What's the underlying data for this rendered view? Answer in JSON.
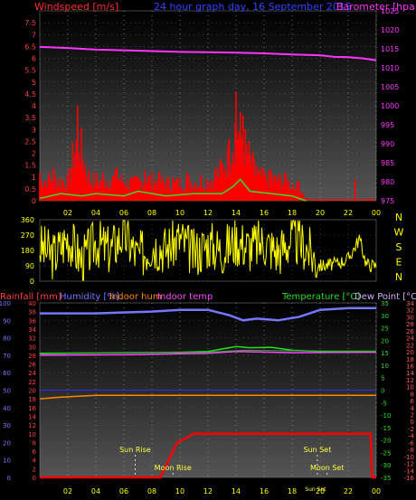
{
  "header": {
    "left_label": "Windspeed [m/s]",
    "center_label": "24 hour graph day, 16 September 2015",
    "right_label": "Barometer [hpa]"
  },
  "colors": {
    "wind": "#ff2020",
    "gust_fill": "#ff0000",
    "wind_avg": "#33dd33",
    "barometer": "#ff33ff",
    "title": "#3344ff",
    "direction": "#ffff00",
    "rain_axis": "#ff4040",
    "humidity": "#7777ff",
    "indoor_hum": "#ff8800",
    "indoor_temp": "#ff44ff",
    "temperature": "#22dd22",
    "dew_point": "#d0b0ff",
    "outer_scale": "#ff5555",
    "sun": "#ffff44",
    "axis_text": "#ffff00",
    "background_top": "#000000",
    "background_bottom": "#555555"
  },
  "chart_data": [
    {
      "type": "bar",
      "name": "windspeed",
      "x_ticks": [
        "02",
        "04",
        "06",
        "08",
        "10",
        "12",
        "14",
        "16",
        "18",
        "20",
        "22",
        "00"
      ],
      "x_range_hours": [
        0,
        24
      ],
      "y_left": {
        "label": "Windspeed [m/s]",
        "range": [
          0,
          8
        ],
        "ticks": [
          "0",
          "0.5",
          "1",
          "1.5",
          "2",
          "2.5",
          "3",
          "3.5",
          "4",
          "4.5",
          "5",
          "5.5",
          "6",
          "6.5",
          "7",
          "7.5"
        ]
      },
      "y_right": {
        "label": "Barometer [hpa]",
        "range": [
          975,
          1025
        ],
        "ticks": [
          "975",
          "980",
          "985",
          "990",
          "995",
          "1000",
          "1005",
          "1010",
          "1015",
          "1020",
          "1025"
        ]
      },
      "gust_segments": [
        {
          "hour": 0.0,
          "value": 1.2
        },
        {
          "hour": 1.0,
          "value": 1.4
        },
        {
          "hour": 2.0,
          "value": 1.1
        },
        {
          "hour": 2.7,
          "value": 4.0
        },
        {
          "hour": 3.5,
          "value": 1.3
        },
        {
          "hour": 4.5,
          "value": 1.2
        },
        {
          "hour": 5.5,
          "value": 1.4
        },
        {
          "hour": 6.5,
          "value": 1.0
        },
        {
          "hour": 7.5,
          "value": 1.3
        },
        {
          "hour": 8.5,
          "value": 1.2
        },
        {
          "hour": 9.5,
          "value": 1.0
        },
        {
          "hour": 10.5,
          "value": 1.2
        },
        {
          "hour": 11.5,
          "value": 1.1
        },
        {
          "hour": 12.5,
          "value": 1.4
        },
        {
          "hour": 13.5,
          "value": 2.6
        },
        {
          "hour": 14.0,
          "value": 4.6
        },
        {
          "hour": 14.5,
          "value": 3.6
        },
        {
          "hour": 15.5,
          "value": 1.5
        },
        {
          "hour": 16.5,
          "value": 1.3
        },
        {
          "hour": 17.5,
          "value": 1.2
        },
        {
          "hour": 18.5,
          "value": 0.8
        },
        {
          "hour": 19.0,
          "value": 0.1
        },
        {
          "hour": 22.5,
          "value": 0.9
        },
        {
          "hour": 23.5,
          "value": 0.1
        }
      ],
      "avg_wind": [
        {
          "hour": 0.0,
          "value": 0.1
        },
        {
          "hour": 1.5,
          "value": 0.3
        },
        {
          "hour": 3.0,
          "value": 0.2
        },
        {
          "hour": 4.0,
          "value": 0.3
        },
        {
          "hour": 6.0,
          "value": 0.2
        },
        {
          "hour": 7.0,
          "value": 0.4
        },
        {
          "hour": 9.0,
          "value": 0.2
        },
        {
          "hour": 11.0,
          "value": 0.3
        },
        {
          "hour": 13.0,
          "value": 0.3
        },
        {
          "hour": 13.8,
          "value": 0.6
        },
        {
          "hour": 14.3,
          "value": 0.9
        },
        {
          "hour": 15.0,
          "value": 0.4
        },
        {
          "hour": 16.5,
          "value": 0.3
        },
        {
          "hour": 18.0,
          "value": 0.2
        },
        {
          "hour": 19.0,
          "value": 0.0
        }
      ],
      "barometer": [
        {
          "hour": 0.0,
          "value": 1015.5
        },
        {
          "hour": 2.0,
          "value": 1015.2
        },
        {
          "hour": 4.0,
          "value": 1014.8
        },
        {
          "hour": 6.0,
          "value": 1014.6
        },
        {
          "hour": 8.0,
          "value": 1014.4
        },
        {
          "hour": 10.0,
          "value": 1014.2
        },
        {
          "hour": 12.0,
          "value": 1014.1
        },
        {
          "hour": 14.0,
          "value": 1014.0
        },
        {
          "hour": 16.0,
          "value": 1013.8
        },
        {
          "hour": 18.0,
          "value": 1013.5
        },
        {
          "hour": 20.0,
          "value": 1013.3
        },
        {
          "hour": 21.0,
          "value": 1012.9
        },
        {
          "hour": 22.0,
          "value": 1012.8
        },
        {
          "hour": 23.0,
          "value": 1012.5
        },
        {
          "hour": 24.0,
          "value": 1012.0
        }
      ]
    },
    {
      "type": "line",
      "name": "wind-direction",
      "y_left": {
        "range": [
          0,
          360
        ],
        "ticks": [
          "0",
          "90",
          "180",
          "270",
          "360"
        ]
      },
      "compass": [
        "N",
        "W",
        "S",
        "E",
        "N"
      ],
      "x_range_hours": [
        0,
        24
      ],
      "series": [
        {
          "hour": 0.0,
          "value": 200
        },
        {
          "hour": 1.0,
          "value": 150
        },
        {
          "hour": 2.0,
          "value": 260
        },
        {
          "hour": 3.0,
          "value": 120
        },
        {
          "hour": 4.0,
          "value": 230
        },
        {
          "hour": 5.0,
          "value": 180
        },
        {
          "hour": 6.0,
          "value": 280
        },
        {
          "hour": 7.0,
          "value": 140
        },
        {
          "hour": 8.0,
          "value": 220
        },
        {
          "hour": 9.0,
          "value": 190
        },
        {
          "hour": 10.0,
          "value": 250
        },
        {
          "hour": 11.0,
          "value": 160
        },
        {
          "hour": 12.0,
          "value": 220
        },
        {
          "hour": 13.0,
          "value": 180
        },
        {
          "hour": 14.0,
          "value": 240
        },
        {
          "hour": 15.0,
          "value": 200
        },
        {
          "hour": 16.0,
          "value": 230
        },
        {
          "hour": 17.0,
          "value": 170
        },
        {
          "hour": 18.0,
          "value": 250
        },
        {
          "hour": 19.0,
          "value": 200
        },
        {
          "hour": 20.0,
          "value": 90
        },
        {
          "hour": 21.0,
          "value": 100
        },
        {
          "hour": 22.0,
          "value": 130
        },
        {
          "hour": 22.8,
          "value": 250
        },
        {
          "hour": 23.3,
          "value": 100
        },
        {
          "hour": 24.0,
          "value": 90
        }
      ]
    },
    {
      "type": "line",
      "name": "temperature-humidity",
      "header_labels": {
        "rainfall": "Rainfall [mm]",
        "humidity": "Humidity [%]",
        "indoor_hum": "Indoor hum",
        "indoor_temp": "Indoor temp",
        "temperature": "Temperature [°C]",
        "dew_point": "Dew Point [°C]"
      },
      "x_ticks": [
        "02",
        "04",
        "06",
        "08",
        "10",
        "12",
        "14",
        "16",
        "18",
        "20",
        "22",
        "00"
      ],
      "x_range_hours": [
        0,
        24
      ],
      "humidity_axis": {
        "range": [
          0,
          100
        ],
        "ticks": [
          "0",
          "10",
          "20",
          "30",
          "40",
          "50",
          "60",
          "70",
          "80",
          "90",
          "100"
        ]
      },
      "rainfall_axis": {
        "range": [
          0,
          40
        ],
        "ticks": [
          "0",
          "2",
          "4",
          "6",
          "8",
          "10",
          "12",
          "14",
          "16",
          "18",
          "20",
          "22",
          "24",
          "26",
          "28",
          "30",
          "32",
          "34",
          "36",
          "38",
          "40"
        ]
      },
      "temperature_axis": {
        "range": [
          -35,
          35
        ],
        "ticks": [
          "35",
          "30",
          "25",
          "20",
          "15",
          "10",
          "5",
          "0",
          "-5",
          "-10",
          "-15",
          "-20",
          "-25",
          "-30",
          "-35"
        ]
      },
      "dewpoint_axis": {
        "range": [
          -16,
          34
        ],
        "ticks": [
          "34",
          "32",
          "30",
          "28",
          "26",
          "24",
          "22",
          "20",
          "18",
          "16",
          "14",
          "12",
          "10",
          "8",
          "6",
          "4",
          "2",
          "0",
          "-2",
          "-4",
          "-6",
          "-8",
          "-10",
          "-12",
          "-14",
          "-16"
        ]
      },
      "humidity": [
        {
          "hour": 0.0,
          "value": 94
        },
        {
          "hour": 4.0,
          "value": 94
        },
        {
          "hour": 8.0,
          "value": 95
        },
        {
          "hour": 10.0,
          "value": 96
        },
        {
          "hour": 12.0,
          "value": 96
        },
        {
          "hour": 13.5,
          "value": 93
        },
        {
          "hour": 14.5,
          "value": 90
        },
        {
          "hour": 15.5,
          "value": 91
        },
        {
          "hour": 17.0,
          "value": 90
        },
        {
          "hour": 18.5,
          "value": 92
        },
        {
          "hour": 20.0,
          "value": 96
        },
        {
          "hour": 22.0,
          "value": 97
        },
        {
          "hour": 24.0,
          "value": 97
        }
      ],
      "indoor_hum": [
        {
          "hour": 0.0,
          "value": 45
        },
        {
          "hour": 1.5,
          "value": 46
        },
        {
          "hour": 4.0,
          "value": 47
        },
        {
          "hour": 24.0,
          "value": 47
        }
      ],
      "indoor_temp": [
        {
          "hour": 0.0,
          "value": 14.5
        },
        {
          "hour": 6.0,
          "value": 15.0
        },
        {
          "hour": 12.0,
          "value": 15.2
        },
        {
          "hour": 14.5,
          "value": 16.0
        },
        {
          "hour": 17.0,
          "value": 15.8
        },
        {
          "hour": 24.0,
          "value": 15.6
        }
      ],
      "temperature": [
        {
          "hour": 0.0,
          "value": 14.8
        },
        {
          "hour": 6.0,
          "value": 15.0
        },
        {
          "hour": 10.0,
          "value": 15.2
        },
        {
          "hour": 12.0,
          "value": 15.5
        },
        {
          "hour": 14.0,
          "value": 17.5
        },
        {
          "hour": 15.0,
          "value": 17.0
        },
        {
          "hour": 16.5,
          "value": 17.2
        },
        {
          "hour": 18.0,
          "value": 16.0
        },
        {
          "hour": 20.0,
          "value": 15.5
        },
        {
          "hour": 24.0,
          "value": 15.6
        }
      ],
      "dew_point": [
        {
          "hour": 0.0,
          "value": 14.0
        },
        {
          "hour": 6.0,
          "value": 14.2
        },
        {
          "hour": 12.0,
          "value": 14.8
        },
        {
          "hour": 14.0,
          "value": 15.5
        },
        {
          "hour": 18.0,
          "value": 15.0
        },
        {
          "hour": 24.0,
          "value": 15.2
        }
      ],
      "rainfall": [
        {
          "hour": 0.0,
          "value": 0
        },
        {
          "hour": 8.6,
          "value": 0
        },
        {
          "hour": 9.8,
          "value": 8
        },
        {
          "hour": 11.0,
          "value": 10
        },
        {
          "hour": 23.6,
          "value": 10
        },
        {
          "hour": 23.7,
          "value": 0
        },
        {
          "hour": 24.0,
          "value": 0
        }
      ],
      "annotations": {
        "sun_rise": {
          "label": "Sun Rise",
          "hour": 6.8
        },
        "sun_set": {
          "label": "Sun Set",
          "hour": 19.8
        },
        "moon_rise": {
          "label": "Moon Rise",
          "hour": 9.5
        },
        "moon_set": {
          "label": "Moon Set",
          "hour": 20.5
        },
        "sun_set_bottom": {
          "label": "Sun Set",
          "hour": 19.8
        }
      }
    }
  ]
}
